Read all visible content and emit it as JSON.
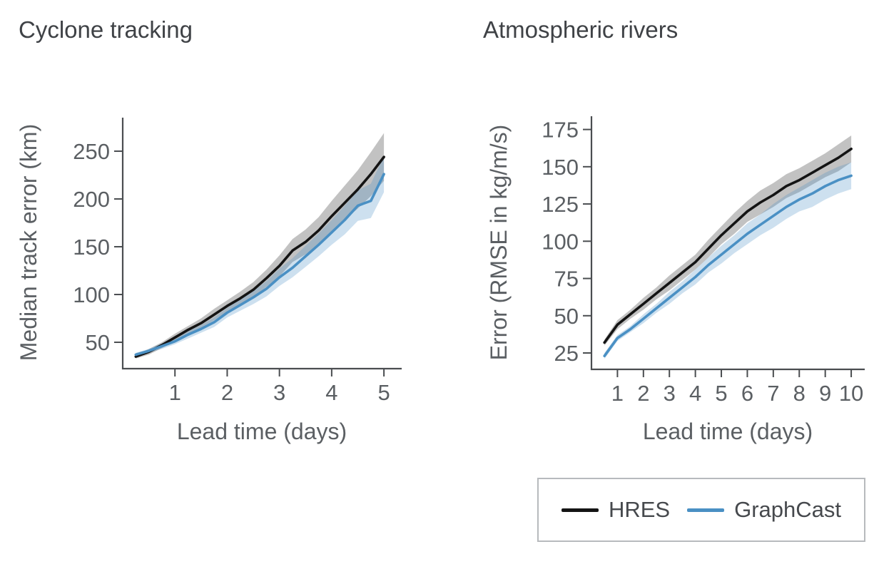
{
  "page": {
    "background": "#ffffff"
  },
  "chart_data": [
    {
      "type": "line",
      "title": "Cyclone tracking",
      "xlabel": "Lead time (days)",
      "ylabel": "Median track error (km)",
      "x_ticks": [
        1,
        2,
        3,
        4,
        5
      ],
      "y_ticks": [
        50,
        100,
        150,
        200,
        250
      ],
      "x_range": [
        0,
        5.34
      ],
      "y_range": [
        22.4,
        285.1
      ],
      "grid": false,
      "legend_position": "shared-bottom-right",
      "x": [
        0.25,
        0.5,
        0.75,
        1.0,
        1.25,
        1.5,
        1.75,
        2.0,
        2.25,
        2.5,
        2.75,
        3.0,
        3.25,
        3.5,
        3.75,
        4.0,
        4.25,
        4.5,
        4.75,
        5.0
      ],
      "series": [
        {
          "name": "HRES",
          "color": "#141414",
          "band_color": "rgba(128,128,128,0.48)",
          "values": [
            35,
            40,
            47,
            55,
            63,
            70,
            79,
            88,
            96,
            105,
            117,
            130,
            146,
            155,
            167,
            182,
            196,
            210,
            226,
            244
          ],
          "band_halfwidth": [
            2,
            3,
            3,
            4,
            4,
            5,
            6,
            6,
            7,
            8,
            9,
            11,
            12,
            13,
            14,
            16,
            18,
            20,
            23,
            25
          ]
        },
        {
          "name": "GraphCast",
          "color": "#4A90C4",
          "band_color": "rgba(74,144,196,0.28)",
          "values": [
            37,
            41,
            46,
            51,
            58,
            64,
            71,
            81,
            89,
            97,
            106,
            118,
            128,
            140,
            152,
            165,
            178,
            193,
            198,
            226
          ],
          "band_halfwidth": [
            2,
            2,
            3,
            3,
            4,
            4,
            5,
            5,
            6,
            7,
            8,
            9,
            10,
            11,
            12,
            13,
            15,
            16,
            18,
            19
          ]
        }
      ]
    },
    {
      "type": "line",
      "title": "Atmospheric rivers",
      "xlabel": "Lead time (days)",
      "ylabel": "Error (RMSE in kg/m/s)",
      "x_ticks": [
        1,
        2,
        3,
        4,
        5,
        6,
        7,
        8,
        9,
        10
      ],
      "y_ticks": [
        25,
        50,
        75,
        100,
        125,
        150,
        175
      ],
      "x_range": [
        0,
        10.52
      ],
      "y_range": [
        14,
        183.9
      ],
      "grid": false,
      "legend_position": "shared-bottom-right",
      "x": [
        0.5,
        1.0,
        1.5,
        2.0,
        2.5,
        3.0,
        3.5,
        4.0,
        4.5,
        5.0,
        5.5,
        6.0,
        6.5,
        7.0,
        7.5,
        8.0,
        8.5,
        9.0,
        9.5,
        10.0
      ],
      "series": [
        {
          "name": "HRES",
          "color": "#141414",
          "band_color": "rgba(128,128,128,0.48)",
          "values": [
            32,
            44,
            51,
            58,
            65,
            72,
            79,
            86,
            95,
            104,
            112,
            120,
            126,
            131,
            137,
            141,
            146,
            151,
            156,
            162
          ],
          "band_halfwidth": [
            2,
            3,
            3,
            4,
            4,
            5,
            5,
            5,
            6,
            6,
            7,
            7,
            8,
            8,
            8,
            8,
            8,
            8,
            9,
            9
          ]
        },
        {
          "name": "GraphCast",
          "color": "#4A90C4",
          "band_color": "rgba(74,144,196,0.28)",
          "values": [
            23,
            35,
            41,
            48,
            55,
            62,
            69,
            76,
            84,
            91,
            98,
            105,
            111,
            117,
            123,
            128,
            132,
            137,
            141,
            144
          ],
          "band_halfwidth": [
            2,
            2,
            2,
            3,
            3,
            4,
            4,
            5,
            5,
            6,
            6,
            7,
            7,
            8,
            8,
            8,
            9,
            9,
            9,
            9
          ]
        }
      ]
    }
  ],
  "legend": {
    "items": [
      {
        "label": "HRES",
        "color": "#141414"
      },
      {
        "label": "GraphCast",
        "color": "#4A90C4"
      }
    ]
  }
}
